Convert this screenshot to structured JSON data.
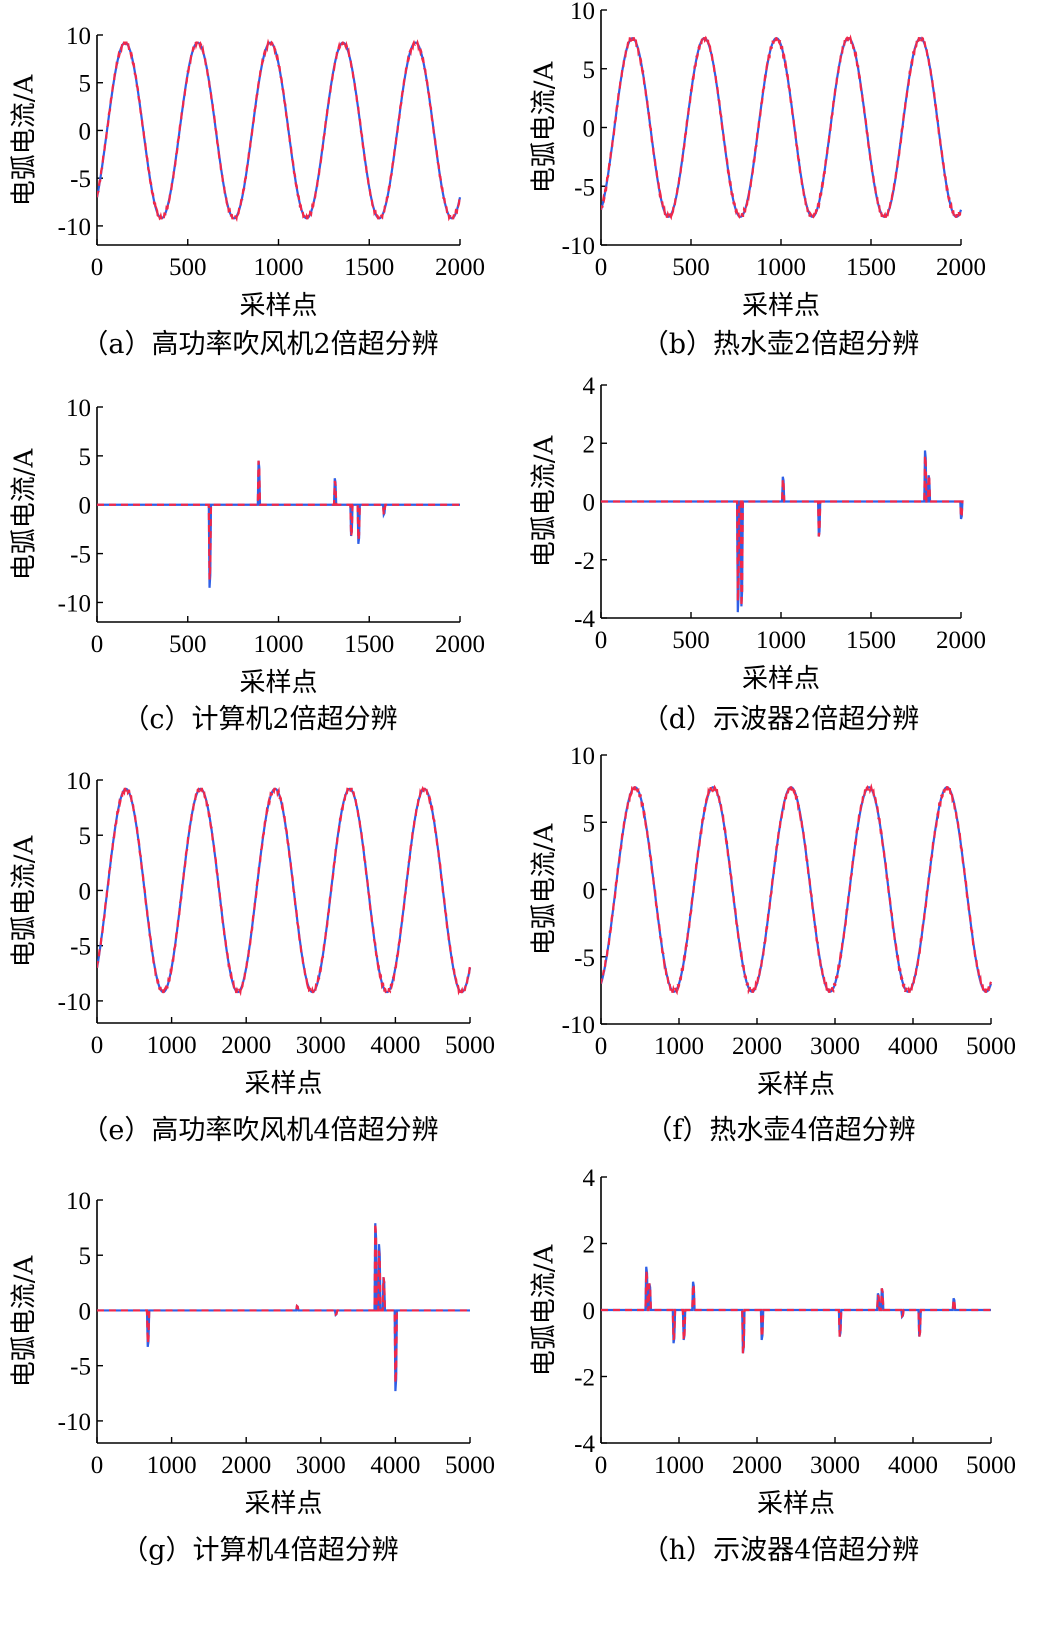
{
  "colors": {
    "original": "#2f5fe6",
    "reconstructed": "#f0284a"
  },
  "chart_data": [
    {
      "type": "line",
      "panel": "a",
      "caption": "（a）高功率吹风机2倍超分辨",
      "xlabel": "采样点",
      "ylabel": "电弧电流/A",
      "xlim": [
        0,
        2000
      ],
      "ylim": [
        -12,
        10
      ],
      "xticks": [
        0,
        500,
        1000,
        1500,
        2000
      ],
      "yticks": [
        -10,
        -5,
        0,
        5,
        10
      ],
      "waveform": {
        "kind": "sine",
        "amplitude": 9.2,
        "period": 400,
        "phase_start": -7,
        "length": 2000
      },
      "series": [
        {
          "color": "original"
        },
        {
          "color": "reconstructed",
          "dashed": true
        }
      ]
    },
    {
      "type": "line",
      "panel": "b",
      "caption": "（b）热水壶2倍超分辨",
      "xlabel": "采样点",
      "ylabel": "电弧电流/A",
      "xlim": [
        0,
        2000
      ],
      "ylim": [
        -10,
        10
      ],
      "xticks": [
        0,
        500,
        1000,
        1500,
        2000
      ],
      "yticks": [
        -10,
        -5,
        0,
        5,
        10
      ],
      "waveform": {
        "kind": "sine",
        "amplitude": 7.6,
        "period": 400,
        "phase_start": -7,
        "length": 2000
      },
      "series": [
        {
          "color": "original"
        },
        {
          "color": "reconstructed",
          "dashed": true
        }
      ]
    },
    {
      "type": "line",
      "panel": "c",
      "caption": "（c）计算机2倍超分辨",
      "xlabel": "采样点",
      "ylabel": "电弧电流/A",
      "xlim": [
        0,
        2000
      ],
      "ylim": [
        -12,
        10
      ],
      "xticks": [
        0,
        500,
        1000,
        1500,
        2000
      ],
      "yticks": [
        -10,
        -5,
        0,
        5,
        10
      ],
      "waveform": {
        "kind": "spikes",
        "length": 2000,
        "spikes": [
          [
            620,
            -8.5
          ],
          [
            890,
            4.5
          ],
          [
            1310,
            2.7
          ],
          [
            1400,
            -3.2
          ],
          [
            1440,
            -4.0
          ],
          [
            1580,
            -1.0
          ]
        ]
      },
      "series": [
        {
          "color": "original"
        },
        {
          "color": "reconstructed",
          "dashed": true
        }
      ]
    },
    {
      "type": "line",
      "panel": "d",
      "caption": "（d）示波器2倍超分辨",
      "xlabel": "采样点",
      "ylabel": "电弧电流/A",
      "xlim": [
        0,
        2000
      ],
      "ylim": [
        -4,
        4
      ],
      "xticks": [
        0,
        500,
        1000,
        1500,
        2000
      ],
      "yticks": [
        -4,
        -2,
        0,
        2,
        4
      ],
      "waveform": {
        "kind": "spikes",
        "length": 2000,
        "spikes": [
          [
            760,
            -3.8
          ],
          [
            780,
            -3.6
          ],
          [
            1010,
            0.85
          ],
          [
            1210,
            -1.2
          ],
          [
            1800,
            1.75
          ],
          [
            1820,
            0.9
          ],
          [
            2000,
            -0.6
          ]
        ]
      },
      "series": [
        {
          "color": "original"
        },
        {
          "color": "reconstructed",
          "dashed": true
        }
      ]
    },
    {
      "type": "line",
      "panel": "e",
      "caption": "（e）高功率吹风机4倍超分辨",
      "xlabel": "采样点",
      "ylabel": "电弧电流/A",
      "xlim": [
        0,
        5000
      ],
      "ylim": [
        -12,
        10
      ],
      "xticks": [
        0,
        1000,
        2000,
        3000,
        4000,
        5000
      ],
      "yticks": [
        -10,
        -5,
        0,
        5,
        10
      ],
      "waveform": {
        "kind": "sine",
        "amplitude": 9.2,
        "period": 1000,
        "phase_start": -7,
        "length": 5000
      },
      "series": [
        {
          "color": "original"
        },
        {
          "color": "reconstructed",
          "dashed": true
        }
      ]
    },
    {
      "type": "line",
      "panel": "f",
      "caption": "（f）热水壶4倍超分辨",
      "xlabel": "采样点",
      "ylabel": "电弧电流/A",
      "xlim": [
        0,
        5000
      ],
      "ylim": [
        -10,
        10
      ],
      "xticks": [
        0,
        1000,
        2000,
        3000,
        4000,
        5000
      ],
      "yticks": [
        -10,
        -5,
        0,
        5,
        10
      ],
      "waveform": {
        "kind": "sine",
        "amplitude": 7.6,
        "period": 1000,
        "phase_start": -7,
        "length": 5000
      },
      "series": [
        {
          "color": "original"
        },
        {
          "color": "reconstructed",
          "dashed": true
        }
      ]
    },
    {
      "type": "line",
      "panel": "g",
      "caption": "（g）计算机4倍超分辨",
      "xlabel": "采样点",
      "ylabel": "电弧电流/A",
      "xlim": [
        0,
        5000
      ],
      "ylim": [
        -12,
        10
      ],
      "xticks": [
        0,
        1000,
        2000,
        3000,
        4000,
        5000
      ],
      "yticks": [
        -10,
        -5,
        0,
        5,
        10
      ],
      "waveform": {
        "kind": "spikes",
        "length": 5000,
        "spikes": [
          [
            680,
            -3.3
          ],
          [
            2680,
            0.4
          ],
          [
            3200,
            -0.4
          ],
          [
            3730,
            7.9
          ],
          [
            3780,
            6.0
          ],
          [
            3840,
            3.0
          ],
          [
            4000,
            -7.3
          ]
        ]
      },
      "series": [
        {
          "color": "original"
        },
        {
          "color": "reconstructed",
          "dashed": true
        }
      ]
    },
    {
      "type": "line",
      "panel": "h",
      "caption": "（h）示波器4倍超分辨",
      "xlabel": "采样点",
      "ylabel": "电弧电流/A",
      "xlim": [
        0,
        5000
      ],
      "ylim": [
        -4,
        4
      ],
      "xticks": [
        0,
        1000,
        2000,
        3000,
        4000,
        5000
      ],
      "yticks": [
        -4,
        -2,
        0,
        2,
        4
      ],
      "waveform": {
        "kind": "spikes",
        "length": 5000,
        "spikes": [
          [
            580,
            1.3
          ],
          [
            620,
            0.8
          ],
          [
            930,
            -1.0
          ],
          [
            1060,
            -0.9
          ],
          [
            1180,
            0.85
          ],
          [
            1820,
            -1.3
          ],
          [
            2060,
            -0.9
          ],
          [
            3060,
            -0.8
          ],
          [
            3550,
            0.5
          ],
          [
            3600,
            0.65
          ],
          [
            3860,
            -0.2
          ],
          [
            4080,
            -0.8
          ],
          [
            4520,
            0.35
          ]
        ]
      },
      "series": [
        {
          "color": "original"
        },
        {
          "color": "reconstructed",
          "dashed": true
        }
      ]
    }
  ]
}
